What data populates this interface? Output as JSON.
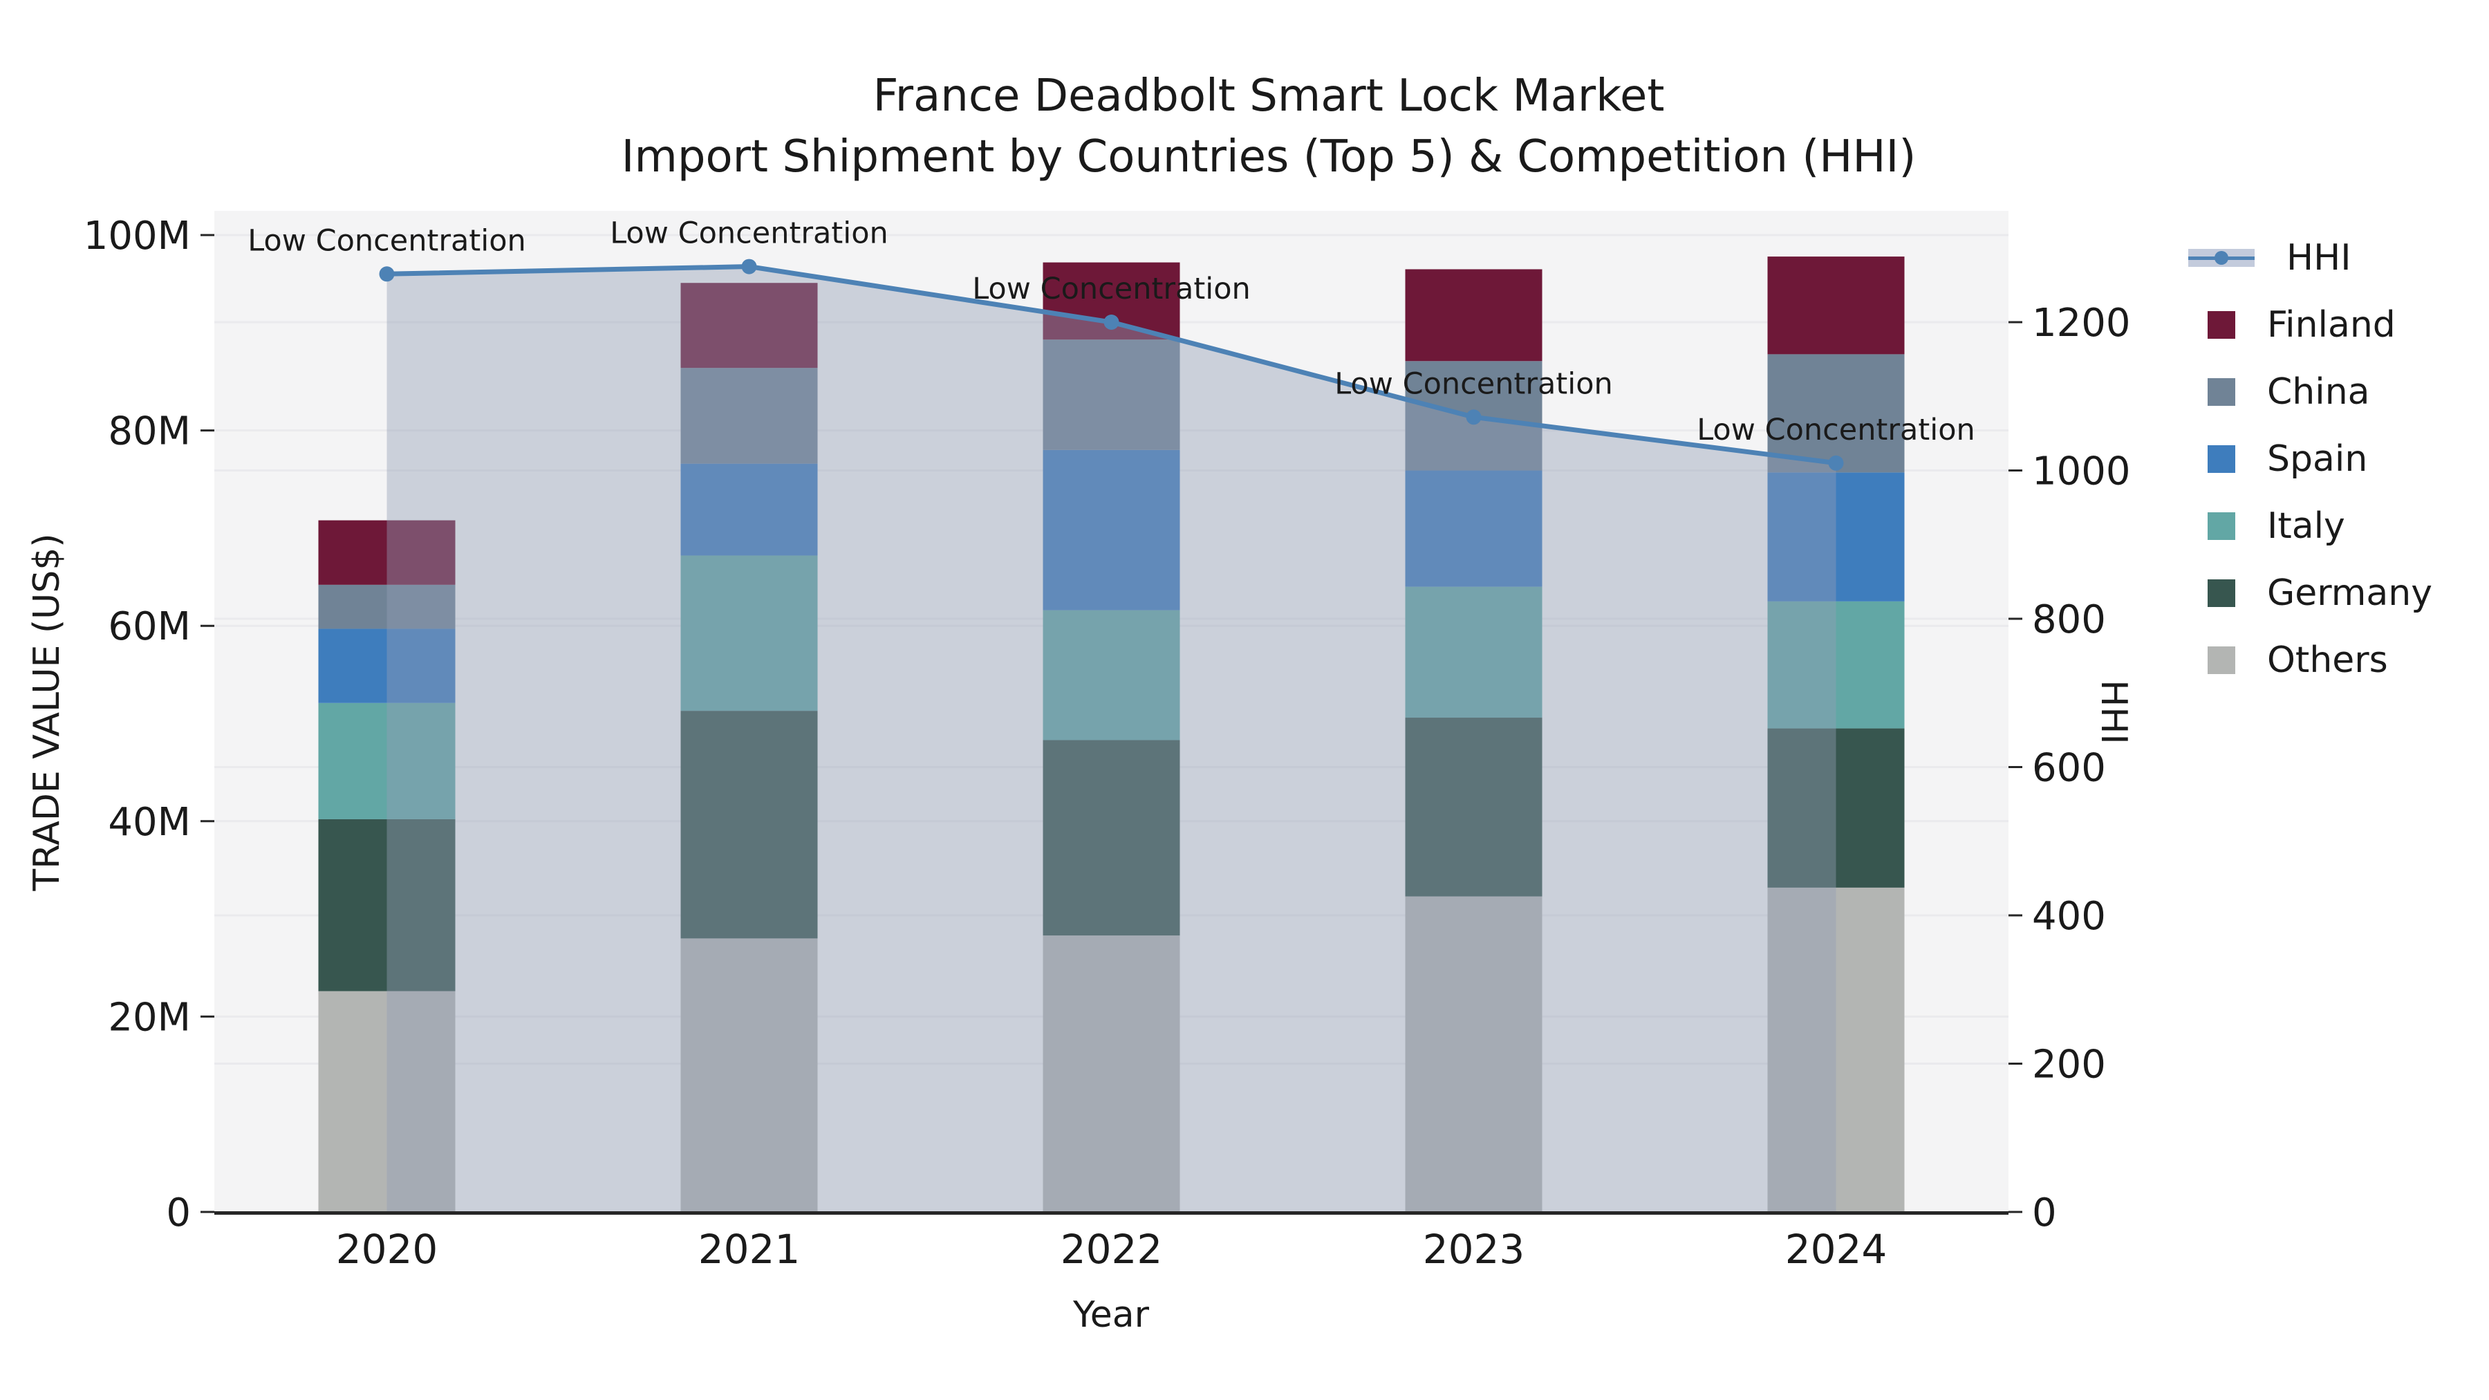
{
  "title": {
    "line1": "France Deadbolt Smart Lock Market",
    "line2": "Import Shipment by Countries (Top 5) & Competition (HHI)"
  },
  "axes": {
    "x_label": "Year",
    "y_left_label": "TRADE VALUE (US$)",
    "y_right_label": "HHI"
  },
  "legend": {
    "items": [
      {
        "label": "HHI",
        "type": "line",
        "color": "#4d82b5",
        "band_color": "#c3cbdc"
      },
      {
        "label": "Finland",
        "type": "swatch",
        "color": "#6e1838"
      },
      {
        "label": "China",
        "type": "swatch",
        "color": "#708396"
      },
      {
        "label": "Spain",
        "type": "swatch",
        "color": "#3e7dbd"
      },
      {
        "label": "Italy",
        "type": "swatch",
        "color": "#62a7a5"
      },
      {
        "label": "Germany",
        "type": "swatch",
        "color": "#37564f"
      },
      {
        "label": "Others",
        "type": "swatch",
        "color": "#b3b5b3"
      }
    ]
  },
  "colors": {
    "plot_bg": "#f4f4f5",
    "grid": "#eaeaed",
    "spine": "#262626",
    "text": "#1a1a1a",
    "hhi_line": "#4d82b5",
    "hhi_area": "rgba(145,157,180,0.42)"
  },
  "chart_data": {
    "type": "combo: stacked-bar + line",
    "title": "France Deadbolt Smart Lock Market — Import Shipment by Countries (Top 5) & Competition (HHI)",
    "categories": [
      "2020",
      "2021",
      "2022",
      "2023",
      "2024"
    ],
    "xlabel": "Year",
    "stack_unit": "M US$ (trade value, left axis)",
    "series": [
      {
        "name": "Others",
        "color": "#b3b5b3",
        "values": [
          22.6,
          28.0,
          28.3,
          32.3,
          33.2
        ]
      },
      {
        "name": "Germany",
        "color": "#37564f",
        "values": [
          17.6,
          23.3,
          20.0,
          18.3,
          16.3
        ]
      },
      {
        "name": "Italy",
        "color": "#62a7a5",
        "values": [
          11.9,
          15.9,
          13.3,
          13.4,
          13.0
        ]
      },
      {
        "name": "Spain",
        "color": "#3e7dbd",
        "values": [
          7.6,
          9.4,
          16.4,
          11.9,
          13.2
        ]
      },
      {
        "name": "China",
        "color": "#708396",
        "values": [
          4.5,
          9.8,
          11.3,
          11.2,
          12.1
        ]
      },
      {
        "name": "Finland",
        "color": "#6e1838",
        "values": [
          6.6,
          8.7,
          7.9,
          9.4,
          10.0
        ]
      }
    ],
    "bar_totals": [
      70.8,
      95.1,
      97.2,
      96.5,
      97.8
    ],
    "line_series": {
      "name": "HHI",
      "axis": "right",
      "values": [
        1265,
        1275,
        1200,
        1072,
        1010
      ],
      "point_annotations": [
        "Low Concentration",
        "Low Concentration",
        "Low Concentration",
        "Low Concentration",
        "Low Concentration"
      ]
    },
    "y_left": {
      "label": "TRADE VALUE (US$)",
      "lim": [
        0,
        102.5
      ],
      "tick_values": [
        0,
        20,
        40,
        60,
        80,
        100
      ],
      "tick_labels": [
        "0",
        "20M",
        "40M",
        "60M",
        "80M",
        "100M"
      ]
    },
    "y_right": {
      "label": "HHI",
      "lim": [
        0,
        1350
      ],
      "tick_values": [
        0,
        200,
        400,
        600,
        800,
        1000,
        1200
      ],
      "tick_labels": [
        "0",
        "200",
        "400",
        "600",
        "800",
        "1000",
        "1200"
      ]
    },
    "grid": true,
    "legend_position": "right"
  }
}
